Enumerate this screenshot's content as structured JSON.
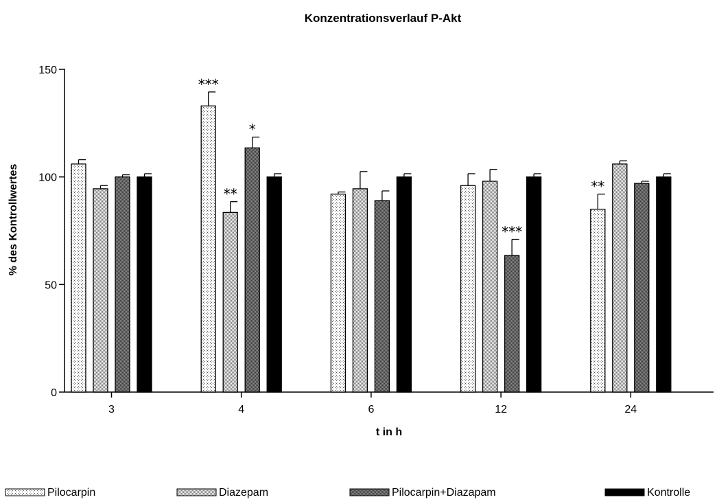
{
  "chart_data": {
    "type": "bar",
    "title": "Konzentrationsverlauf P-Akt",
    "xlabel": "t in h",
    "ylabel": "% des Kontrollwertes",
    "categories": [
      "3",
      "4",
      "6",
      "12",
      "24"
    ],
    "ylim": [
      0,
      150
    ],
    "yticks": [
      "0",
      "50",
      "100",
      "150"
    ],
    "grid": false,
    "legend_position": "bottom",
    "series": [
      {
        "name": "Pilocarpin",
        "fill": "dots-light",
        "values": [
          106,
          133,
          92,
          96,
          85
        ],
        "errors": [
          2,
          6.5,
          1,
          5.5,
          7
        ],
        "significance": [
          "",
          "***",
          "",
          "",
          "**"
        ]
      },
      {
        "name": "Diazepam",
        "fill": "dots-medium",
        "values": [
          94.5,
          83.5,
          94.5,
          98,
          106
        ],
        "errors": [
          1.5,
          5,
          8,
          5.5,
          1.5
        ],
        "significance": [
          "",
          "**",
          "",
          "",
          ""
        ]
      },
      {
        "name": "Pilocarpin+Diazapam",
        "fill": "dots-dense",
        "values": [
          100,
          113.5,
          89,
          63.5,
          97
        ],
        "errors": [
          1,
          5,
          4.5,
          7.5,
          1
        ],
        "significance": [
          "",
          "*",
          "",
          "***",
          ""
        ]
      },
      {
        "name": "Kontrolle",
        "fill": "solid-black",
        "values": [
          100,
          100,
          100,
          100,
          100
        ],
        "errors": [
          1.5,
          1.5,
          1.5,
          1.5,
          1.5
        ],
        "significance": [
          "",
          "",
          "",
          "",
          ""
        ]
      }
    ]
  }
}
